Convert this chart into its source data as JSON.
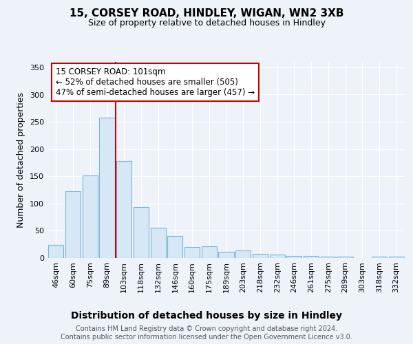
{
  "title1": "15, CORSEY ROAD, HINDLEY, WIGAN, WN2 3XB",
  "title2": "Size of property relative to detached houses in Hindley",
  "xlabel": "Distribution of detached houses by size in Hindley",
  "ylabel": "Number of detached properties",
  "categories": [
    "46sqm",
    "60sqm",
    "75sqm",
    "89sqm",
    "103sqm",
    "118sqm",
    "132sqm",
    "146sqm",
    "160sqm",
    "175sqm",
    "189sqm",
    "203sqm",
    "218sqm",
    "232sqm",
    "246sqm",
    "261sqm",
    "275sqm",
    "289sqm",
    "303sqm",
    "318sqm",
    "332sqm"
  ],
  "values": [
    24,
    123,
    152,
    258,
    178,
    94,
    55,
    40,
    20,
    21,
    12,
    14,
    7,
    6,
    4,
    4,
    3,
    3,
    0,
    2,
    2
  ],
  "bar_color": "#d6e8f5",
  "bar_edge_color": "#7ab5d8",
  "vline_index": 3.5,
  "vline_color": "#cc0000",
  "annotation_text": "15 CORSEY ROAD: 101sqm\n← 52% of detached houses are smaller (505)\n47% of semi-detached houses are larger (457) →",
  "annotation_box_color": "#ffffff",
  "annotation_box_edge": "#cc0000",
  "ylim": [
    0,
    360
  ],
  "yticks": [
    0,
    50,
    100,
    150,
    200,
    250,
    300,
    350
  ],
  "footer": "Contains HM Land Registry data © Crown copyright and database right 2024.\nContains public sector information licensed under the Open Government Licence v3.0.",
  "background_color": "#eef2f9",
  "plot_background": "#eef2f9",
  "grid_color": "#ffffff",
  "title1_fontsize": 11,
  "title2_fontsize": 9,
  "ylabel_fontsize": 9,
  "xlabel_fontsize": 10,
  "tick_fontsize": 8,
  "footer_fontsize": 7
}
